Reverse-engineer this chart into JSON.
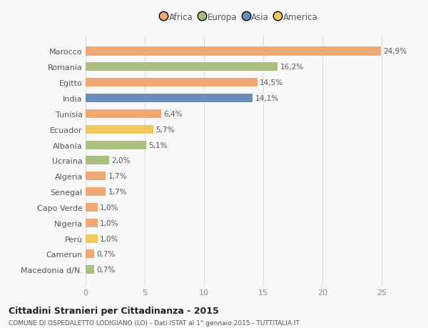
{
  "countries": [
    "Macedonia d/N.",
    "Camerun",
    "Perù",
    "Nigeria",
    "Capo Verde",
    "Senegal",
    "Algeria",
    "Ucraina",
    "Albania",
    "Ecuador",
    "Tunisia",
    "India",
    "Egitto",
    "Romania",
    "Marocco"
  ],
  "values": [
    0.7,
    0.7,
    1.0,
    1.0,
    1.0,
    1.7,
    1.7,
    2.0,
    5.1,
    5.7,
    6.4,
    14.1,
    14.5,
    16.2,
    24.9
  ],
  "labels": [
    "0,7%",
    "0,7%",
    "1,0%",
    "1,0%",
    "1,0%",
    "1,7%",
    "1,7%",
    "2,0%",
    "5,1%",
    "5,7%",
    "6,4%",
    "14,1%",
    "14,5%",
    "16,2%",
    "24,9%"
  ],
  "bar_colors": [
    "#A8BF7F",
    "#F0A875",
    "#F0C860",
    "#F0A875",
    "#F0A875",
    "#F0A875",
    "#F0A875",
    "#A8BF7F",
    "#A8BF7F",
    "#F0C860",
    "#F0A875",
    "#6C8EBD",
    "#F0A875",
    "#A8BF7F",
    "#F0A875"
  ],
  "title1": "Cittadini Stranieri per Cittadinanza - 2015",
  "title2": "COMUNE DI OSPEDALETTO LODIGIANO (LO) - Dati ISTAT al 1° gennaio 2015 - TUTTITALIA.IT",
  "xlim": [
    0,
    26
  ],
  "xticks": [
    0,
    5,
    10,
    15,
    20,
    25
  ],
  "background_color": "#f9f9f9",
  "legend_labels": [
    "Africa",
    "Europa",
    "Asia",
    "America"
  ],
  "legend_colors": [
    "#F0A875",
    "#A8BF7F",
    "#6C8EBD",
    "#F0C860"
  ]
}
